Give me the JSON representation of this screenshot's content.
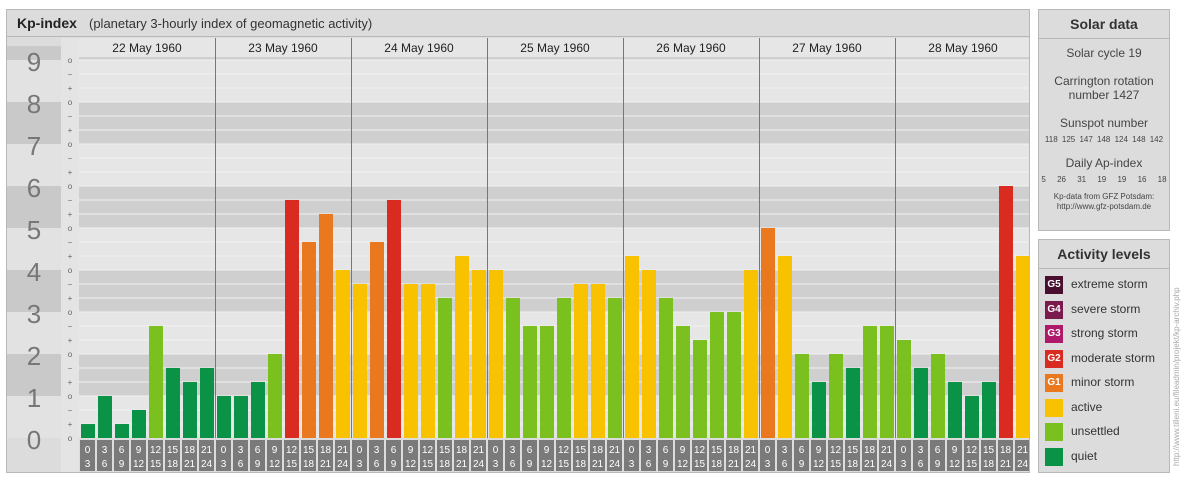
{
  "title": {
    "main": "Kp-index",
    "sub": "(planetary 3-hourly index of geomagnetic activity)"
  },
  "chart_data": {
    "type": "bar",
    "title": "Kp-index",
    "subtitle": "(planetary 3-hourly index of geomagnetic activity)",
    "ylim": [
      0,
      9.33
    ],
    "y_ticks": [
      "0",
      "1",
      "2",
      "3",
      "4",
      "5",
      "6",
      "7",
      "8",
      "9"
    ],
    "y_minor_ticks": [
      "o",
      "+",
      "−"
    ],
    "days": [
      "22 May 1960",
      "23 May 1960",
      "24 May 1960",
      "25 May 1960",
      "26 May 1960",
      "27 May 1960",
      "28 May 1960"
    ],
    "interval_start_labels": [
      "0",
      "3",
      "6",
      "9",
      "12",
      "15",
      "18",
      "21"
    ],
    "interval_end_labels": [
      "3",
      "6",
      "9",
      "12",
      "15",
      "18",
      "21",
      "24"
    ],
    "values": [
      0.333,
      1,
      0.333,
      0.667,
      2.667,
      1.667,
      1.333,
      1.667,
      1,
      1,
      1.333,
      2,
      5.667,
      4.667,
      5.333,
      4,
      3.667,
      4.667,
      5.667,
      3.667,
      3.667,
      3.333,
      4.333,
      4,
      4,
      3.333,
      2.667,
      2.667,
      3.333,
      3.667,
      3.667,
      3.333,
      4.333,
      4,
      3.333,
      2.667,
      2.333,
      3,
      3,
      4,
      5,
      4.333,
      2,
      1.333,
      2,
      1.667,
      2.667,
      2.667,
      2.333,
      1.667,
      2,
      1.333,
      1,
      1.333,
      6,
      4.333
    ],
    "grid": true,
    "legend_position": "right"
  },
  "solar_data": {
    "title": "Solar data",
    "solar_cycle": "Solar cycle 19",
    "carrington_line1": "Carrington rotation",
    "carrington_line2": "number 1427",
    "sunspot_title": "Sunspot number",
    "sunspot_values": "118 125 147 148 124 148 142",
    "ap_title": "Daily Ap-index",
    "ap_values": "5 26 31 19 19 16 18",
    "source_line1": "Kp-data from GFZ Potsdam:",
    "source_line2": "http://www.gfz-potsdam.de"
  },
  "activity_levels": {
    "title": "Activity levels",
    "items": [
      {
        "badge": "G5",
        "label": "extreme storm",
        "color": "#4a0f2e"
      },
      {
        "badge": "G4",
        "label": "severe storm",
        "color": "#7a1a4d"
      },
      {
        "badge": "G3",
        "label": "strong storm",
        "color": "#b0186a"
      },
      {
        "badge": "G2",
        "label": "moderate storm",
        "color": "#d92b20"
      },
      {
        "badge": "G1",
        "label": "minor storm",
        "color": "#e9781e"
      },
      {
        "badge": "",
        "label": "active",
        "color": "#f9c200"
      },
      {
        "badge": "",
        "label": "unsettled",
        "color": "#7ac11f"
      },
      {
        "badge": "",
        "label": "quiet",
        "color": "#0a9346"
      }
    ]
  },
  "watermark": "http://www.tilleni.eu/fileadmin/projekt/kp-archiv.php"
}
